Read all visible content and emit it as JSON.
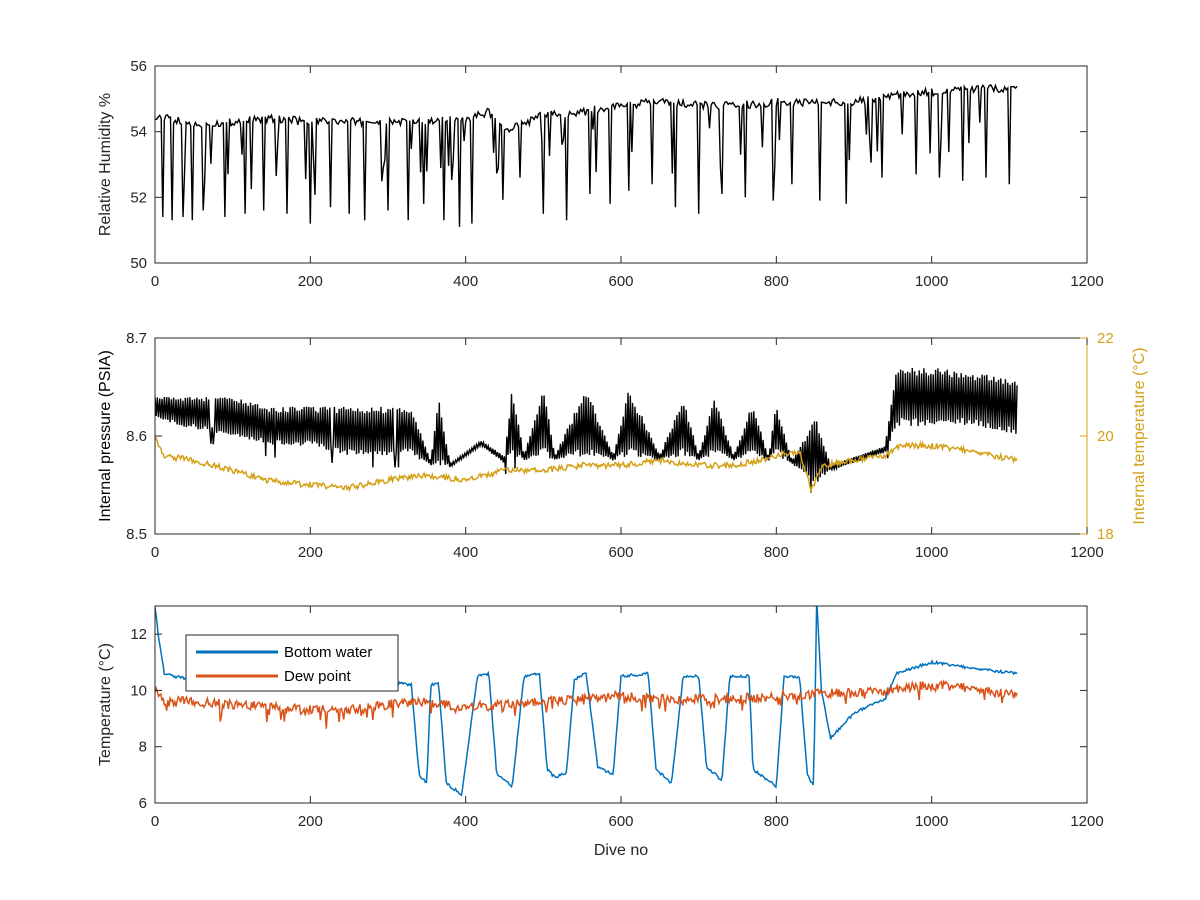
{
  "chart_data": [
    {
      "type": "line",
      "ylabel": "Relative Humidity %",
      "xlim": [
        0,
        1200
      ],
      "ylim": [
        50,
        56
      ],
      "xticks": [
        0,
        200,
        400,
        600,
        800,
        1000,
        1200
      ],
      "yticks": [
        50,
        52,
        54,
        56
      ],
      "grid": false,
      "series": [
        {
          "color": "#000000",
          "points": [
            [
              0,
              54.5
            ],
            [
              50,
              54.2
            ],
            [
              100,
              54.3
            ],
            [
              150,
              54.4
            ],
            [
              200,
              54.3
            ],
            [
              250,
              54.3
            ],
            [
              300,
              54.3
            ],
            [
              350,
              54.3
            ],
            [
              400,
              54.4
            ],
            [
              430,
              54.6
            ],
            [
              450,
              54.0
            ],
            [
              500,
              54.5
            ],
            [
              550,
              54.6
            ],
            [
              600,
              54.8
            ],
            [
              650,
              54.9
            ],
            [
              700,
              54.8
            ],
            [
              750,
              54.8
            ],
            [
              800,
              54.9
            ],
            [
              850,
              54.9
            ],
            [
              900,
              54.9
            ],
            [
              950,
              55.1
            ],
            [
              1000,
              55.2
            ],
            [
              1050,
              55.3
            ],
            [
              1110,
              55.3
            ]
          ],
          "dips": [
            [
              10,
              51.4
            ],
            [
              22,
              51.3
            ],
            [
              35,
              51.4
            ],
            [
              48,
              51.3
            ],
            [
              62,
              51.6
            ],
            [
              90,
              51.4
            ],
            [
              115,
              51.5
            ],
            [
              140,
              51.6
            ],
            [
              170,
              51.5
            ],
            [
              200,
              51.2
            ],
            [
              225,
              51.7
            ],
            [
              250,
              51.5
            ],
            [
              270,
              51.3
            ],
            [
              300,
              51.6
            ],
            [
              325,
              51.3
            ],
            [
              345,
              51.8
            ],
            [
              372,
              51.3
            ],
            [
              392,
              51.1
            ],
            [
              408,
              51.2
            ],
            [
              470,
              52.6
            ],
            [
              500,
              51.5
            ],
            [
              530,
              51.3
            ],
            [
              560,
              52.1
            ],
            [
              585,
              51.8
            ],
            [
              610,
              52.2
            ],
            [
              640,
              52.4
            ],
            [
              670,
              51.7
            ],
            [
              700,
              51.5
            ],
            [
              730,
              52.1
            ],
            [
              760,
              52.0
            ],
            [
              795,
              51.9
            ],
            [
              820,
              52.4
            ],
            [
              855,
              51.9
            ],
            [
              890,
              51.8
            ],
            [
              935,
              52.6
            ],
            [
              980,
              52.7
            ],
            [
              1010,
              52.6
            ],
            [
              1040,
              52.5
            ],
            [
              1070,
              52.6
            ],
            [
              1100,
              52.4
            ]
          ]
        }
      ]
    },
    {
      "type": "line",
      "ylabel": "Internal pressure (PSIA)",
      "y2label": "Internal temperature (°C)",
      "xlim": [
        0,
        1200
      ],
      "ylim": [
        8.5,
        8.7
      ],
      "y2lim": [
        18,
        22
      ],
      "xticks": [
        0,
        200,
        400,
        600,
        800,
        1000,
        1200
      ],
      "yticks": [
        8.5,
        8.6,
        8.7
      ],
      "y2ticks": [
        18,
        20,
        22
      ],
      "grid": false,
      "series": [
        {
          "axis": "left",
          "color": "#000000",
          "bands": [
            [
              0,
              8.62,
              8.64
            ],
            [
              30,
              8.61,
              8.64
            ],
            [
              100,
              8.6,
              8.64
            ],
            [
              150,
              8.59,
              8.63
            ],
            [
              200,
              8.59,
              8.63
            ],
            [
              250,
              8.58,
              8.63
            ],
            [
              300,
              8.58,
              8.63
            ],
            [
              330,
              8.58,
              8.63
            ],
            [
              355,
              8.57,
              8.575
            ],
            [
              365,
              8.57,
              8.64
            ],
            [
              380,
              8.568,
              8.572
            ],
            [
              420,
              8.59,
              8.595
            ],
            [
              450,
              8.572,
              8.58
            ],
            [
              460,
              8.58,
              8.65
            ],
            [
              475,
              8.575,
              8.58
            ],
            [
              500,
              8.58,
              8.65
            ],
            [
              515,
              8.575,
              8.58
            ],
            [
              555,
              8.58,
              8.65
            ],
            [
              590,
              8.575,
              8.58
            ],
            [
              610,
              8.58,
              8.65
            ],
            [
              650,
              8.575,
              8.58
            ],
            [
              680,
              8.58,
              8.64
            ],
            [
              700,
              8.575,
              8.58
            ],
            [
              720,
              8.58,
              8.64
            ],
            [
              745,
              8.575,
              8.58
            ],
            [
              770,
              8.58,
              8.635
            ],
            [
              790,
              8.574,
              8.578
            ],
            [
              800,
              8.58,
              8.635
            ],
            [
              820,
              8.572,
              8.575
            ],
            [
              850,
              8.55,
              8.62
            ],
            [
              870,
              8.565,
              8.57
            ],
            [
              940,
              8.583,
              8.59
            ],
            [
              955,
              8.61,
              8.67
            ],
            [
              1000,
              8.61,
              8.67
            ],
            [
              1050,
              8.61,
              8.665
            ],
            [
              1110,
              8.6,
              8.66
            ]
          ]
        },
        {
          "axis": "right",
          "color": "#D4A017",
          "points": [
            [
              0,
              20.0
            ],
            [
              10,
              19.6
            ],
            [
              50,
              19.5
            ],
            [
              100,
              19.3
            ],
            [
              140,
              19.1
            ],
            [
              200,
              19.0
            ],
            [
              250,
              18.95
            ],
            [
              300,
              19.1
            ],
            [
              350,
              19.2
            ],
            [
              400,
              19.1
            ],
            [
              450,
              19.3
            ],
            [
              500,
              19.3
            ],
            [
              550,
              19.4
            ],
            [
              600,
              19.4
            ],
            [
              650,
              19.5
            ],
            [
              700,
              19.4
            ],
            [
              750,
              19.4
            ],
            [
              800,
              19.6
            ],
            [
              830,
              19.7
            ],
            [
              845,
              18.9
            ],
            [
              860,
              19.4
            ],
            [
              900,
              19.5
            ],
            [
              940,
              19.6
            ],
            [
              960,
              19.8
            ],
            [
              1000,
              19.8
            ],
            [
              1050,
              19.7
            ],
            [
              1110,
              19.5
            ]
          ]
        }
      ]
    },
    {
      "type": "line",
      "xlabel": "Dive no",
      "ylabel": "Temperature (°C)",
      "xlim": [
        0,
        1200
      ],
      "ylim": [
        6,
        13
      ],
      "xticks": [
        0,
        200,
        400,
        600,
        800,
        1000,
        1200
      ],
      "yticks": [
        6,
        8,
        10,
        12
      ],
      "grid": false,
      "legend": "top-left",
      "series": [
        {
          "name": "Bottom water",
          "color": "#0072BD",
          "points": [
            [
              0,
              13.0
            ],
            [
              5,
              11.8
            ],
            [
              12,
              10.6
            ],
            [
              40,
              10.4
            ],
            [
              100,
              10.35
            ],
            [
              200,
              10.3
            ],
            [
              300,
              10.3
            ],
            [
              330,
              10.2
            ],
            [
              340,
              7.0
            ],
            [
              350,
              6.7
            ],
            [
              355,
              10.2
            ],
            [
              365,
              10.3
            ],
            [
              375,
              6.7
            ],
            [
              395,
              6.3
            ],
            [
              415,
              10.5
            ],
            [
              430,
              10.6
            ],
            [
              440,
              7.0
            ],
            [
              460,
              6.6
            ],
            [
              475,
              10.5
            ],
            [
              495,
              10.6
            ],
            [
              505,
              7.2
            ],
            [
              515,
              6.9
            ],
            [
              530,
              7.1
            ],
            [
              540,
              10.4
            ],
            [
              555,
              10.6
            ],
            [
              570,
              7.3
            ],
            [
              590,
              7.0
            ],
            [
              600,
              10.5
            ],
            [
              635,
              10.6
            ],
            [
              645,
              7.2
            ],
            [
              665,
              6.7
            ],
            [
              680,
              10.5
            ],
            [
              700,
              10.5
            ],
            [
              710,
              7.3
            ],
            [
              730,
              6.8
            ],
            [
              740,
              10.5
            ],
            [
              765,
              10.5
            ],
            [
              770,
              7.2
            ],
            [
              800,
              6.6
            ],
            [
              810,
              10.5
            ],
            [
              830,
              10.5
            ],
            [
              840,
              7.0
            ],
            [
              848,
              6.6
            ],
            [
              852,
              13.2
            ],
            [
              858,
              10.0
            ],
            [
              870,
              8.3
            ],
            [
              900,
              9.2
            ],
            [
              940,
              9.7
            ],
            [
              955,
              10.6
            ],
            [
              1000,
              11.0
            ],
            [
              1050,
              10.8
            ],
            [
              1110,
              10.6
            ]
          ]
        },
        {
          "name": "Dew point",
          "color": "#D95319",
          "points": [
            [
              0,
              10.1
            ],
            [
              10,
              9.6
            ],
            [
              50,
              9.6
            ],
            [
              100,
              9.5
            ],
            [
              150,
              9.4
            ],
            [
              200,
              9.3
            ],
            [
              250,
              9.3
            ],
            [
              300,
              9.5
            ],
            [
              350,
              9.6
            ],
            [
              400,
              9.4
            ],
            [
              450,
              9.5
            ],
            [
              500,
              9.6
            ],
            [
              550,
              9.7
            ],
            [
              600,
              9.8
            ],
            [
              650,
              9.7
            ],
            [
              700,
              9.7
            ],
            [
              750,
              9.7
            ],
            [
              800,
              9.8
            ],
            [
              850,
              9.9
            ],
            [
              900,
              9.9
            ],
            [
              950,
              10.0
            ],
            [
              1000,
              10.2
            ],
            [
              1050,
              10.1
            ],
            [
              1110,
              9.8
            ]
          ]
        }
      ]
    }
  ]
}
